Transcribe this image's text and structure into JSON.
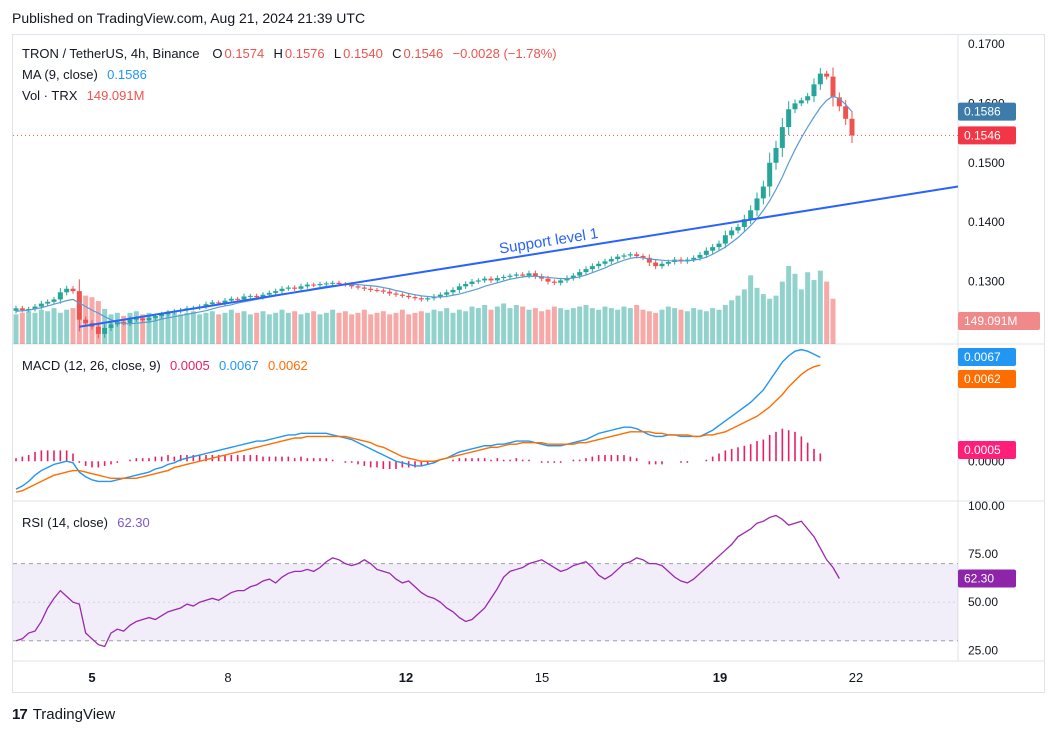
{
  "header": {
    "published": "Published on TradingView.com, Aug 21, 2024 21:39 UTC"
  },
  "legend": {
    "symbol": "TRON / TetherUS, 4h, Binance",
    "o_label": "O",
    "o": "0.1574",
    "h_label": "H",
    "h": "0.1576",
    "l_label": "L",
    "l": "0.1540",
    "c_label": "C",
    "c": "0.1546",
    "change": "−0.0028 (−1.78%)",
    "ma_label": "MA (9, close)",
    "ma_value": "0.1586",
    "vol_label": "Vol · TRX",
    "vol_value": "149.091M",
    "macd_label": "MACD (12, 26, close, 9)",
    "macd_hist": "0.0005",
    "macd_line": "0.0067",
    "macd_signal": "0.0062",
    "rsi_label": "RSI (14, close)",
    "rsi_value": "62.30"
  },
  "annotation": {
    "text": "Support level 1"
  },
  "badges": {
    "ma": "0.1586",
    "price": "0.1546",
    "volume": "149.091M",
    "macd_line": "0.0067",
    "macd_signal": "0.0062",
    "macd_hist": "0.0005",
    "rsi": "62.30"
  },
  "colors": {
    "up": "#26a69a",
    "down": "#ef5350",
    "ma": "#2962ff",
    "trend": "#2962ff",
    "macd": "#2196f3",
    "signal": "#ff6d00",
    "hist": "#e91e63",
    "rsi": "#7e57c2"
  },
  "footer": {
    "brand": "TradingView"
  },
  "chart_data": [
    {
      "type": "candlestick",
      "title": "TRON / TetherUS, 4h, Binance",
      "x_ticks": [
        "5",
        "8",
        "12",
        "15",
        "19",
        "22"
      ],
      "y_ticks": [
        "0.1700",
        "0.1600",
        "0.1500",
        "0.1400",
        "0.1300"
      ],
      "ylim": [
        0.1195,
        0.1715
      ],
      "close": [
        0.1255,
        0.1252,
        0.1254,
        0.1258,
        0.1263,
        0.1266,
        0.127,
        0.1282,
        0.1288,
        0.1284,
        0.1236,
        0.123,
        0.1224,
        0.1212,
        0.1222,
        0.1228,
        0.1232,
        0.123,
        0.1236,
        0.1238,
        0.1235,
        0.1239,
        0.1242,
        0.1245,
        0.1248,
        0.125,
        0.1252,
        0.1255,
        0.1256,
        0.1258,
        0.1262,
        0.1265,
        0.1264,
        0.1268,
        0.1271,
        0.127,
        0.1275,
        0.1276,
        0.1274,
        0.1278,
        0.1281,
        0.1284,
        0.1288,
        0.129,
        0.1288,
        0.1292,
        0.1295,
        0.1294,
        0.1296,
        0.1297,
        0.1298,
        0.1296,
        0.1295,
        0.1292,
        0.129,
        0.1288,
        0.1286,
        0.1285,
        0.1283,
        0.128,
        0.1278,
        0.1276,
        0.1274,
        0.1272,
        0.127,
        0.1272,
        0.1275,
        0.1278,
        0.1282,
        0.1286,
        0.1292,
        0.1296,
        0.13,
        0.1302,
        0.1305,
        0.1302,
        0.1306,
        0.1308,
        0.131,
        0.1312,
        0.131,
        0.1314,
        0.1309,
        0.1305,
        0.13,
        0.1298,
        0.1302,
        0.1306,
        0.131,
        0.1316,
        0.1321,
        0.1326,
        0.133,
        0.1334,
        0.1338,
        0.1342,
        0.1344,
        0.1346,
        0.1343,
        0.134,
        0.1332,
        0.1326,
        0.133,
        0.1333,
        0.1337,
        0.1334,
        0.1337,
        0.134,
        0.1345,
        0.1352,
        0.1358,
        0.1364,
        0.1378,
        0.1386,
        0.1392,
        0.1405,
        0.142,
        0.144,
        0.146,
        0.15,
        0.1525,
        0.156,
        0.159,
        0.16,
        0.1605,
        0.1612,
        0.1632,
        0.165,
        0.1645,
        0.161,
        0.1595,
        0.1574,
        0.1546
      ],
      "ma": [
        0.125,
        0.1251,
        0.1252,
        0.1254,
        0.1256,
        0.1259,
        0.1262,
        0.1265,
        0.1268,
        0.127,
        0.1264,
        0.1258,
        0.1252,
        0.1247,
        0.1241,
        0.1236,
        0.1232,
        0.1229,
        0.1229,
        0.123,
        0.1231,
        0.1232,
        0.1234,
        0.1237,
        0.1239,
        0.1241,
        0.1243,
        0.1245,
        0.1247,
        0.1249,
        0.1251,
        0.1254,
        0.1257,
        0.1259,
        0.1261,
        0.1264,
        0.1266,
        0.1268,
        0.127,
        0.1272,
        0.1274,
        0.1276,
        0.1278,
        0.128,
        0.1282,
        0.1284,
        0.1286,
        0.1288,
        0.129,
        0.1292,
        0.1293,
        0.1294,
        0.1295,
        0.1295,
        0.1295,
        0.1294,
        0.1293,
        0.1292,
        0.129,
        0.1288,
        0.1285,
        0.1283,
        0.128,
        0.1278,
        0.1276,
        0.1275,
        0.1274,
        0.1274,
        0.1275,
        0.1277,
        0.1279,
        0.1282,
        0.1285,
        0.1288,
        0.1292,
        0.1295,
        0.1298,
        0.1301,
        0.1304,
        0.1306,
        0.1308,
        0.1309,
        0.1309,
        0.1308,
        0.1307,
        0.1306,
        0.1305,
        0.1305,
        0.1306,
        0.1308,
        0.1311,
        0.1315,
        0.1319,
        0.1323,
        0.1328,
        0.1332,
        0.1336,
        0.1339,
        0.1341,
        0.134,
        0.1338,
        0.1337,
        0.1336,
        0.1335,
        0.1335,
        0.1335,
        0.1335,
        0.1336,
        0.1338,
        0.1341,
        0.1346,
        0.1352,
        0.1358,
        0.1366,
        0.1374,
        0.1384,
        0.1394,
        0.1406,
        0.142,
        0.1436,
        0.1455,
        0.1476,
        0.15,
        0.1522,
        0.1542,
        0.156,
        0.1577,
        0.1593,
        0.1605,
        0.1612,
        0.1608,
        0.1598,
        0.1586
      ],
      "trendline": {
        "label": "Support level 1",
        "from": [
          10,
          0.1224
        ],
        "to": [
          137,
          0.146
        ]
      }
    },
    {
      "type": "bar",
      "name": "Vol · TRX",
      "values": [
        38,
        40,
        42,
        40,
        44,
        42,
        46,
        40,
        44,
        46,
        58,
        62,
        60,
        55,
        45,
        38,
        40,
        36,
        40,
        42,
        38,
        40,
        36,
        38,
        42,
        40,
        38,
        40,
        42,
        38,
        40,
        42,
        38,
        40,
        44,
        40,
        42,
        38,
        40,
        42,
        38,
        40,
        44,
        40,
        42,
        38,
        40,
        42,
        38,
        40,
        44,
        40,
        42,
        38,
        40,
        44,
        38,
        40,
        42,
        38,
        40,
        44,
        38,
        40,
        42,
        40,
        44,
        42,
        46,
        40,
        44,
        42,
        48,
        46,
        50,
        44,
        48,
        52,
        46,
        50,
        48,
        44,
        46,
        42,
        44,
        48,
        46,
        44,
        46,
        48,
        50,
        46,
        44,
        48,
        46,
        44,
        48,
        46,
        50,
        44,
        42,
        40,
        44,
        48,
        46,
        44,
        42,
        46,
        44,
        42,
        46,
        44,
        50,
        56,
        62,
        70,
        88,
        72,
        64,
        58,
        62,
        80,
        100,
        90,
        70,
        92,
        82,
        94,
        80,
        58
      ],
      "volume_shown": "149.091M"
    },
    {
      "type": "line",
      "name": "MACD (12, 26, close, 9)",
      "y_ticks": [
        "0.0050",
        "0.0000"
      ],
      "ylim": [
        -0.0025,
        0.0075
      ],
      "series": [
        {
          "name": "MACD",
          "values": [
            -0.0018,
            -0.0016,
            -0.0013,
            -0.0009,
            -0.0006,
            -0.0004,
            -0.0002,
            -0.0001,
            0.0,
            -0.0001,
            -0.0007,
            -0.001,
            -0.0012,
            -0.0013,
            -0.0013,
            -0.0013,
            -0.0012,
            -0.0011,
            -0.001,
            -0.0009,
            -0.0008,
            -0.0007,
            -0.0005,
            -0.0004,
            -0.0002,
            -0.0001,
            0.0001,
            0.0002,
            0.0003,
            0.0004,
            0.0005,
            0.0006,
            0.0007,
            0.0008,
            0.0009,
            0.001,
            0.0011,
            0.0012,
            0.0013,
            0.0013,
            0.0014,
            0.0015,
            0.0016,
            0.0017,
            0.0017,
            0.0018,
            0.0018,
            0.0018,
            0.0018,
            0.0018,
            0.0017,
            0.0016,
            0.0015,
            0.0014,
            0.0012,
            0.001,
            0.0008,
            0.0006,
            0.0004,
            0.0002,
            0.0,
            -0.0001,
            -0.0002,
            -0.0003,
            -0.0003,
            -0.0002,
            -0.0001,
            0.0001,
            0.0002,
            0.0004,
            0.0006,
            0.0007,
            0.0008,
            0.0009,
            0.001,
            0.001,
            0.0011,
            0.0011,
            0.0012,
            0.0013,
            0.0013,
            0.0013,
            0.0012,
            0.0011,
            0.001,
            0.001,
            0.001,
            0.0011,
            0.0012,
            0.0013,
            0.0014,
            0.0016,
            0.0018,
            0.0019,
            0.002,
            0.0021,
            0.0022,
            0.0022,
            0.0021,
            0.0019,
            0.0017,
            0.0016,
            0.0016,
            0.0017,
            0.0017,
            0.0016,
            0.0016,
            0.0016,
            0.0016,
            0.0018,
            0.002,
            0.0023,
            0.0026,
            0.0029,
            0.0032,
            0.0035,
            0.0038,
            0.0042,
            0.0046,
            0.0052,
            0.0058,
            0.0064,
            0.0068,
            0.0071,
            0.0072,
            0.0071,
            0.0069,
            0.0067
          ]
        },
        {
          "name": "Signal",
          "values": [
            -0.002,
            -0.0019,
            -0.0017,
            -0.0015,
            -0.0013,
            -0.0011,
            -0.0009,
            -0.0008,
            -0.0007,
            -0.0006,
            -0.0006,
            -0.0007,
            -0.0008,
            -0.0009,
            -0.001,
            -0.0011,
            -0.0011,
            -0.0011,
            -0.0011,
            -0.0011,
            -0.001,
            -0.0009,
            -0.0008,
            -0.0007,
            -0.0006,
            -0.0004,
            -0.0003,
            -0.0002,
            -0.0001,
            0.0,
            0.0001,
            0.0002,
            0.0003,
            0.0004,
            0.0005,
            0.0006,
            0.0007,
            0.0008,
            0.0009,
            0.001,
            0.0011,
            0.0012,
            0.0013,
            0.0014,
            0.0015,
            0.0015,
            0.0016,
            0.0016,
            0.0016,
            0.0016,
            0.0016,
            0.0016,
            0.0016,
            0.0015,
            0.0014,
            0.0013,
            0.0012,
            0.001,
            0.0009,
            0.0007,
            0.0005,
            0.0003,
            0.0002,
            0.0001,
            0.0,
            0.0,
            0.0,
            0.0001,
            0.0002,
            0.0003,
            0.0004,
            0.0005,
            0.0006,
            0.0007,
            0.0008,
            0.0009,
            0.0009,
            0.001,
            0.0011,
            0.0011,
            0.0012,
            0.0012,
            0.0012,
            0.0012,
            0.0011,
            0.0011,
            0.0011,
            0.0011,
            0.0011,
            0.0012,
            0.0012,
            0.0013,
            0.0014,
            0.0015,
            0.0016,
            0.0017,
            0.0018,
            0.0019,
            0.0019,
            0.0019,
            0.0019,
            0.0018,
            0.0018,
            0.0017,
            0.0017,
            0.0017,
            0.0017,
            0.0016,
            0.0016,
            0.0017,
            0.0017,
            0.0018,
            0.0019,
            0.0021,
            0.0023,
            0.0025,
            0.0027,
            0.0029,
            0.0032,
            0.0035,
            0.0039,
            0.0043,
            0.0048,
            0.0052,
            0.0056,
            0.0059,
            0.0061,
            0.0062
          ]
        },
        {
          "name": "Histogram",
          "values": [
            0.0002,
            0.0003,
            0.0004,
            0.0006,
            0.0007,
            0.0007,
            0.0007,
            0.0007,
            0.0007,
            0.0005,
            -0.0001,
            -0.0003,
            -0.0004,
            -0.0004,
            -0.0003,
            -0.0002,
            -0.0001,
            0.0,
            0.0001,
            0.0002,
            0.0002,
            0.0002,
            0.0003,
            0.0003,
            0.0004,
            0.0003,
            0.0004,
            0.0004,
            0.0004,
            0.0004,
            0.0004,
            0.0004,
            0.0004,
            0.0004,
            0.0004,
            0.0004,
            0.0004,
            0.0004,
            0.0004,
            0.0003,
            0.0003,
            0.0003,
            0.0003,
            0.0003,
            0.0002,
            0.0003,
            0.0002,
            0.0002,
            0.0002,
            0.0002,
            0.0001,
            0.0,
            -0.0001,
            -0.0001,
            -0.0002,
            -0.0003,
            -0.0004,
            -0.0004,
            -0.0005,
            -0.0005,
            -0.0005,
            -0.0004,
            -0.0004,
            -0.0004,
            -0.0003,
            -0.0002,
            -0.0001,
            0.0,
            0.0,
            0.0001,
            0.0002,
            0.0002,
            0.0002,
            0.0002,
            0.0002,
            0.0001,
            0.0002,
            0.0001,
            0.0001,
            0.0002,
            0.0001,
            0.0001,
            0.0,
            -0.0001,
            -0.0001,
            -0.0001,
            -0.0001,
            0.0,
            0.0001,
            0.0001,
            0.0002,
            0.0003,
            0.0004,
            0.0004,
            0.0004,
            0.0004,
            0.0004,
            0.0003,
            0.0002,
            0.0,
            -0.0002,
            -0.0002,
            -0.0002,
            0.0,
            0.0,
            -0.0001,
            -0.0001,
            0.0,
            0.0,
            0.0001,
            0.0003,
            0.0005,
            0.0007,
            0.0008,
            0.0009,
            0.001,
            0.0011,
            0.0013,
            0.0014,
            0.0017,
            0.0019,
            0.0021,
            0.002,
            0.0019,
            0.0016,
            0.0012,
            0.0008,
            0.0005
          ]
        }
      ]
    },
    {
      "type": "line",
      "name": "RSI (14, close)",
      "y_ticks": [
        "100.00",
        "75.00",
        "50.00",
        "25.00"
      ],
      "ylim": [
        20,
        102
      ],
      "band": [
        30,
        70
      ],
      "values": [
        30,
        31,
        34,
        35,
        40,
        47,
        52,
        56,
        53,
        50,
        49,
        34,
        31,
        28,
        27,
        34,
        36,
        35,
        38,
        40,
        41,
        42,
        41,
        43,
        45,
        46,
        47,
        49,
        48,
        50,
        51,
        52,
        51,
        53,
        55,
        56,
        56,
        58,
        59,
        61,
        62,
        60,
        63,
        65,
        66,
        66,
        67,
        66,
        68,
        71,
        73,
        72,
        70,
        69,
        70,
        72,
        70,
        67,
        66,
        65,
        62,
        60,
        61,
        58,
        55,
        53,
        52,
        50,
        47,
        45,
        42,
        40,
        41,
        44,
        47,
        52,
        57,
        63,
        66,
        67,
        68,
        70,
        71,
        72,
        70,
        68,
        66,
        67,
        69,
        70,
        71,
        68,
        64,
        62,
        64,
        67,
        70,
        71,
        73,
        72,
        70,
        70,
        69,
        66,
        63,
        61,
        60,
        62,
        65,
        68,
        71,
        74,
        77,
        80,
        84,
        86,
        88,
        91,
        92,
        94,
        95,
        93,
        90,
        91,
        92,
        88,
        84,
        78,
        72,
        68,
        62.3
      ]
    }
  ]
}
